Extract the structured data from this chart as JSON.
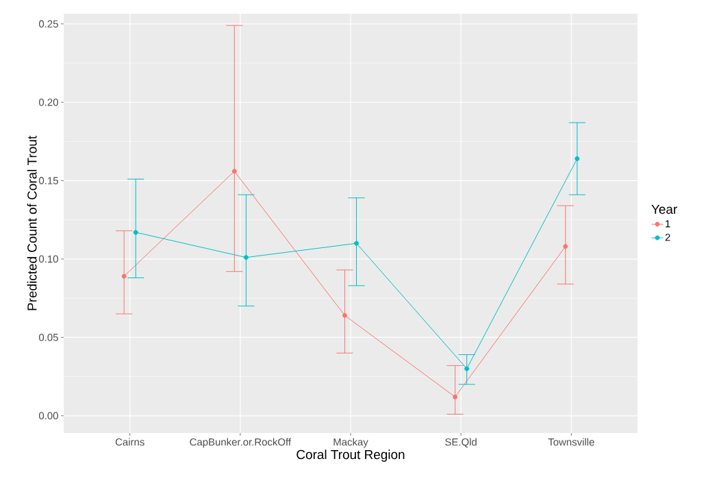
{
  "chart_data": {
    "type": "line",
    "xlabel": "Coral Trout Region",
    "ylabel": "Predicted Count of Coral Trout",
    "legend_title": "Year",
    "categories": [
      "Cairns",
      "CapBunker.or.RockOff",
      "Mackay",
      "SE.Qld",
      "Townsville"
    ],
    "series": [
      {
        "name": "1",
        "color": "#f8766d",
        "values": [
          0.089,
          0.156,
          0.064,
          0.012,
          0.108
        ],
        "errors": [
          [
            0.065,
            0.118
          ],
          [
            0.092,
            0.249
          ],
          [
            0.04,
            0.093
          ],
          [
            0.001,
            0.032
          ],
          [
            0.084,
            0.134
          ]
        ]
      },
      {
        "name": "2",
        "color": "#00bfc4",
        "values": [
          0.117,
          0.101,
          0.11,
          0.03,
          0.164
        ],
        "errors": [
          [
            0.088,
            0.151
          ],
          [
            0.07,
            0.141
          ],
          [
            0.083,
            0.139
          ],
          [
            0.02,
            0.039
          ],
          [
            0.141,
            0.187
          ]
        ]
      }
    ],
    "ylim": [
      -0.011,
      0.2565
    ],
    "yticks": [
      {
        "value": 0,
        "label": "0.00"
      },
      {
        "value": 0.05,
        "label": "0.05"
      },
      {
        "value": 0.1,
        "label": "0.10"
      },
      {
        "value": 0.15,
        "label": "0.15"
      },
      {
        "value": 0.2,
        "label": "0.20"
      },
      {
        "value": 0.25,
        "label": "0.25"
      }
    ],
    "grid": true,
    "legend": "right",
    "marker": "circle",
    "line_style": "solid"
  }
}
